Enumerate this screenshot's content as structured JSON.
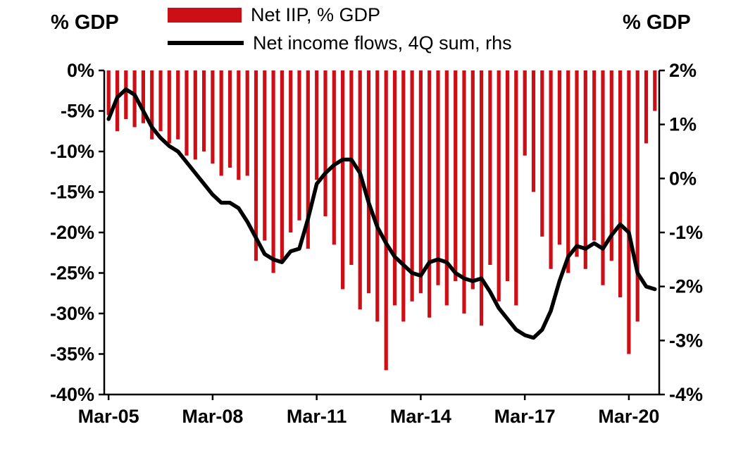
{
  "chart": {
    "left_axis": {
      "title": "% GDP",
      "ticks": [
        {
          "value": 0,
          "label": "0%"
        },
        {
          "value": -5,
          "label": "-5%"
        },
        {
          "value": -10,
          "label": "-10%"
        },
        {
          "value": -15,
          "label": "-15%"
        },
        {
          "value": -20,
          "label": "-20%"
        },
        {
          "value": -25,
          "label": "-25%"
        },
        {
          "value": -30,
          "label": "-30%"
        },
        {
          "value": -35,
          "label": "-35%"
        },
        {
          "value": -40,
          "label": "-40%"
        }
      ]
    },
    "right_axis": {
      "title": "% GDP",
      "ticks": [
        {
          "value": 2,
          "label": "2%"
        },
        {
          "value": 1,
          "label": "1%"
        },
        {
          "value": 0,
          "label": "0%"
        },
        {
          "value": -1,
          "label": "-1%"
        },
        {
          "value": -2,
          "label": "-2%"
        },
        {
          "value": -3,
          "label": "-3%"
        },
        {
          "value": -4,
          "label": "-4%"
        }
      ]
    },
    "x_axis": {
      "tick_labels": [
        "Mar-05",
        "Mar-08",
        "Mar-11",
        "Mar-14",
        "Mar-17",
        "Mar-20"
      ],
      "tick_positions": [
        0,
        12,
        24,
        36,
        48,
        60
      ]
    },
    "series_bar": {
      "label": "Net IIP, % GDP",
      "color": "#cc0f16"
    },
    "series_line": {
      "label": "Net income flows, 4Q sum, rhs",
      "color": "#000000"
    }
  },
  "chart_data": {
    "type": "combo",
    "title": "",
    "legend_position": "top",
    "grid": false,
    "left_ylim": [
      -40,
      0
    ],
    "right_ylim": [
      -4,
      2
    ],
    "categories": [
      "Mar-05",
      "Jun-05",
      "Sep-05",
      "Dec-05",
      "Mar-06",
      "Jun-06",
      "Sep-06",
      "Dec-06",
      "Mar-07",
      "Jun-07",
      "Sep-07",
      "Dec-07",
      "Mar-08",
      "Jun-08",
      "Sep-08",
      "Dec-08",
      "Mar-09",
      "Jun-09",
      "Sep-09",
      "Dec-09",
      "Mar-10",
      "Jun-10",
      "Sep-10",
      "Dec-10",
      "Mar-11",
      "Jun-11",
      "Sep-11",
      "Dec-11",
      "Mar-12",
      "Jun-12",
      "Sep-12",
      "Dec-12",
      "Mar-13",
      "Jun-13",
      "Sep-13",
      "Dec-13",
      "Mar-14",
      "Jun-14",
      "Sep-14",
      "Dec-14",
      "Mar-15",
      "Jun-15",
      "Sep-15",
      "Dec-15",
      "Mar-16",
      "Jun-16",
      "Sep-16",
      "Dec-16",
      "Mar-17",
      "Jun-17",
      "Sep-17",
      "Dec-17",
      "Mar-18",
      "Jun-18",
      "Sep-18",
      "Dec-18",
      "Mar-19",
      "Jun-19",
      "Sep-19",
      "Dec-19",
      "Mar-20",
      "Jun-20",
      "Sep-20",
      "Dec-20"
    ],
    "series": [
      {
        "name": "Net IIP, % GDP",
        "type": "bar",
        "axis": "left",
        "unit": "% GDP",
        "values": [
          -5.5,
          -7.5,
          -6.0,
          -7.0,
          -6.5,
          -8.5,
          -7.5,
          -9.0,
          -8.5,
          -10.5,
          -11.0,
          -10.0,
          -11.5,
          -13.0,
          -12.0,
          -13.5,
          -13.0,
          -23.5,
          -21.0,
          -25.0,
          -23.5,
          -20.0,
          -18.5,
          -22.0,
          -13.5,
          -18.0,
          -21.5,
          -27.0,
          -24.0,
          -29.5,
          -27.5,
          -31.0,
          -37.0,
          -29.0,
          -31.0,
          -28.5,
          -27.5,
          -30.5,
          -26.5,
          -29.0,
          -26.0,
          -30.0,
          -27.0,
          -31.5,
          -24.0,
          -28.5,
          -26.0,
          -29.0,
          -10.5,
          -15.0,
          -20.5,
          -24.5,
          -21.5,
          -25.0,
          -23.0,
          -24.5,
          -21.0,
          -26.5,
          -23.5,
          -28.0,
          -35.0,
          -31.0,
          -9.0,
          -5.0
        ]
      },
      {
        "name": "Net income flows, 4Q sum, rhs",
        "type": "line",
        "axis": "right",
        "unit": "% GDP",
        "values": [
          1.1,
          1.5,
          1.65,
          1.55,
          1.25,
          0.95,
          0.75,
          0.6,
          0.5,
          0.3,
          0.1,
          -0.1,
          -0.3,
          -0.45,
          -0.45,
          -0.55,
          -0.8,
          -1.1,
          -1.4,
          -1.5,
          -1.55,
          -1.35,
          -1.3,
          -0.75,
          -0.1,
          0.1,
          0.25,
          0.35,
          0.35,
          0.1,
          -0.45,
          -0.9,
          -1.2,
          -1.45,
          -1.6,
          -1.75,
          -1.8,
          -1.55,
          -1.5,
          -1.55,
          -1.75,
          -1.85,
          -1.9,
          -1.85,
          -2.1,
          -2.4,
          -2.6,
          -2.8,
          -2.9,
          -2.95,
          -2.8,
          -2.45,
          -1.9,
          -1.45,
          -1.25,
          -1.3,
          -1.2,
          -1.3,
          -1.05,
          -0.85,
          -1.0,
          -1.75,
          -2.0,
          -2.05
        ]
      }
    ]
  }
}
